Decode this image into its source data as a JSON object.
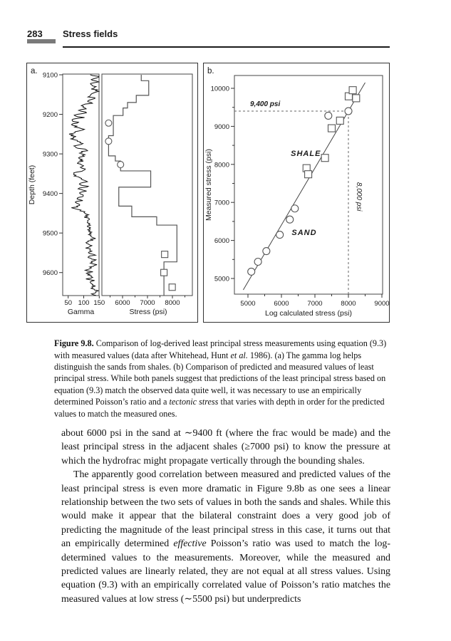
{
  "header": {
    "page_number": "283",
    "section_title": "Stress fields"
  },
  "chart_data": [
    {
      "id": "panel_a",
      "type": "line",
      "panel_label": "a.",
      "depth_axis": {
        "label": "Depth (feet)",
        "ticks": [
          9100,
          9200,
          9300,
          9400,
          9500,
          9600
        ],
        "range": [
          9100,
          9658
        ]
      },
      "gamma_axis": {
        "label": "Gamma",
        "ticks": [
          50,
          100,
          150
        ]
      },
      "stress_axis": {
        "label": "Stress (psi)",
        "ticks": [
          6000,
          7000,
          8000
        ],
        "minor_step": 500
      },
      "gamma_trend": [
        [
          9100,
          130
        ],
        [
          9106,
          150
        ],
        [
          9112,
          125
        ],
        [
          9118,
          148
        ],
        [
          9124,
          118
        ],
        [
          9130,
          142
        ],
        [
          9136,
          128
        ],
        [
          9142,
          150
        ],
        [
          9148,
          132
        ],
        [
          9154,
          115
        ],
        [
          9160,
          135
        ],
        [
          9166,
          105
        ],
        [
          9172,
          122
        ],
        [
          9178,
          95
        ],
        [
          9184,
          112
        ],
        [
          9190,
          85
        ],
        [
          9196,
          105
        ],
        [
          9202,
          72
        ],
        [
          9208,
          95
        ],
        [
          9214,
          60
        ],
        [
          9220,
          80
        ],
        [
          9226,
          55
        ],
        [
          9232,
          78
        ],
        [
          9238,
          95
        ],
        [
          9244,
          70
        ],
        [
          9250,
          52
        ],
        [
          9256,
          75
        ],
        [
          9262,
          58
        ],
        [
          9268,
          78
        ],
        [
          9274,
          95
        ],
        [
          9280,
          72
        ],
        [
          9286,
          90
        ],
        [
          9292,
          110
        ],
        [
          9298,
          85
        ],
        [
          9304,
          100
        ],
        [
          9310,
          78
        ],
        [
          9316,
          95
        ],
        [
          9322,
          80
        ],
        [
          9328,
          98
        ],
        [
          9334,
          85
        ],
        [
          9340,
          102
        ],
        [
          9346,
          78
        ],
        [
          9352,
          62
        ],
        [
          9358,
          82
        ],
        [
          9364,
          98
        ],
        [
          9370,
          112
        ],
        [
          9376,
          92
        ],
        [
          9382,
          108
        ],
        [
          9388,
          88
        ],
        [
          9394,
          105
        ],
        [
          9400,
          82
        ],
        [
          9406,
          98
        ],
        [
          9412,
          78
        ],
        [
          9418,
          92
        ],
        [
          9424,
          70
        ],
        [
          9430,
          88
        ],
        [
          9436,
          65
        ],
        [
          9442,
          85
        ],
        [
          9448,
          100
        ],
        [
          9454,
          115
        ],
        [
          9460,
          100
        ],
        [
          9466,
          118
        ],
        [
          9472,
          105
        ],
        [
          9478,
          122
        ],
        [
          9484,
          110
        ],
        [
          9490,
          125
        ],
        [
          9496,
          112
        ],
        [
          9502,
          128
        ],
        [
          9508,
          115
        ],
        [
          9514,
          130
        ],
        [
          9520,
          118
        ],
        [
          9526,
          105
        ],
        [
          9532,
          122
        ],
        [
          9538,
          110
        ],
        [
          9544,
          126
        ],
        [
          9550,
          114
        ],
        [
          9556,
          130
        ],
        [
          9562,
          118
        ],
        [
          9568,
          132
        ],
        [
          9574,
          120
        ],
        [
          9580,
          135
        ],
        [
          9586,
          122
        ],
        [
          9592,
          108
        ],
        [
          9598,
          125
        ],
        [
          9604,
          112
        ],
        [
          9610,
          128
        ],
        [
          9616,
          115
        ],
        [
          9622,
          132
        ],
        [
          9628,
          120
        ],
        [
          9634,
          138
        ],
        [
          9640,
          125
        ],
        [
          9646,
          148
        ],
        [
          9652,
          130
        ],
        [
          9658,
          140
        ]
      ],
      "gamma_jitter": 9,
      "stress_steps": [
        [
          6750,
          9100,
          9115
        ],
        [
          7050,
          9115,
          9152
        ],
        [
          6550,
          9152,
          9170
        ],
        [
          6200,
          9170,
          9184
        ],
        [
          6020,
          9184,
          9203
        ],
        [
          5630,
          9203,
          9254
        ],
        [
          5440,
          9254,
          9305
        ],
        [
          5710,
          9305,
          9318
        ],
        [
          5920,
          9318,
          9343
        ],
        [
          7130,
          9343,
          9384
        ],
        [
          5850,
          9384,
          9432
        ],
        [
          6370,
          9432,
          9459
        ],
        [
          7370,
          9459,
          9480
        ],
        [
          8180,
          9480,
          9573
        ],
        [
          7660,
          9573,
          9658
        ]
      ],
      "sand_measurements": [
        [
          5440,
          9222
        ],
        [
          5440,
          9268
        ],
        [
          5920,
          9327
        ]
      ],
      "shale_measurements": [
        [
          7690,
          9554
        ],
        [
          7660,
          9600
        ],
        [
          7990,
          9637
        ]
      ]
    },
    {
      "id": "panel_b",
      "type": "scatter",
      "panel_label": "b.",
      "x_axis": {
        "label": "Log calculated stress (psi)",
        "ticks": [
          5000,
          6000,
          7000,
          8000,
          9000
        ],
        "minor_step": 500,
        "range": [
          4600,
          9200
        ]
      },
      "y_axis": {
        "label": "Measured stress (psi)",
        "ticks": [
          5000,
          6000,
          7000,
          8000,
          9000,
          10000
        ],
        "minor_step": 500,
        "range": [
          4590,
          10350
        ]
      },
      "series": [
        {
          "name": "SHALE",
          "marker": "square",
          "points": [
            [
              6750,
              7900
            ],
            [
              6800,
              7740
            ],
            [
              7300,
              8170
            ],
            [
              7500,
              8950
            ],
            [
              7750,
              9150
            ],
            [
              8010,
              9790
            ],
            [
              8130,
              9950
            ],
            [
              8230,
              9740
            ]
          ]
        },
        {
          "name": "SAND",
          "marker": "circle",
          "points": [
            [
              5100,
              5180
            ],
            [
              5300,
              5440
            ],
            [
              5550,
              5720
            ],
            [
              5950,
              6150
            ],
            [
              6250,
              6550
            ],
            [
              6400,
              6840
            ],
            [
              7400,
              9280
            ],
            [
              8000,
              9400
            ]
          ]
        }
      ],
      "fit_line": {
        "from": [
          4860,
          4700
        ],
        "to": [
          8500,
          10150
        ]
      },
      "reference_lines": {
        "horizontal": {
          "value": 9400,
          "label": "9,400 psi"
        },
        "vertical": {
          "value": 8000,
          "label": "8,000 psi"
        }
      },
      "annotations": [
        {
          "text": "SHALE",
          "at": [
            6730,
            8300
          ]
        },
        {
          "text": "SAND",
          "at": [
            6680,
            6220
          ]
        }
      ]
    }
  ],
  "caption": {
    "segments": [
      {
        "t": "Figure 9.8.",
        "b": true
      },
      {
        "t": "  Comparison of log-derived least principal stress measurements using equation (9.3) with measured values (data after Whitehead, Hunt "
      },
      {
        "t": "et al.",
        "i": true
      },
      {
        "t": " 1986). (a) The gamma log helps distinguish the sands from shales. (b) Comparison of predicted and measured values of least principal stress. While both panels suggest that predictions of the least principal stress based on equation (9.3) match the observed data quite well, it was necessary to use an empirically determined Poisson’s ratio and a "
      },
      {
        "t": "tectonic stress",
        "i": true
      },
      {
        "t": " that varies with depth in order for the predicted values to match the measured ones."
      }
    ]
  },
  "body": {
    "paragraphs": [
      {
        "indent": false,
        "segments": [
          {
            "t": "about 6000 psi in the sand at ∼9400 ft (where the frac would be made) and the least principal stress in the adjacent shales (≥7000 psi) to know the pressure at which the hydrofrac might propagate vertically through the bounding shales."
          }
        ]
      },
      {
        "indent": true,
        "segments": [
          {
            "t": "The apparently good correlation between measured and predicted values of the least principal stress is even more dramatic in Figure 9.8b as one sees a linear relationship between the two sets of values in both the sands and shales. While this would make it appear that the bilateral constraint does a very good job of predicting the magnitude of the least principal stress in this case, it turns out that an empirically determined "
          },
          {
            "t": "effective",
            "i": true
          },
          {
            "t": " Poisson’s ratio was used to match the log-determined values to the measurements. Moreover, while the measured and predicted values are linearly related, they are not equal at all stress values. Using equation (9.3) with an empirically correlated value of Poisson’s ratio matches the measured values at low stress (∼5500 psi) but underpredicts"
          }
        ]
      }
    ]
  }
}
